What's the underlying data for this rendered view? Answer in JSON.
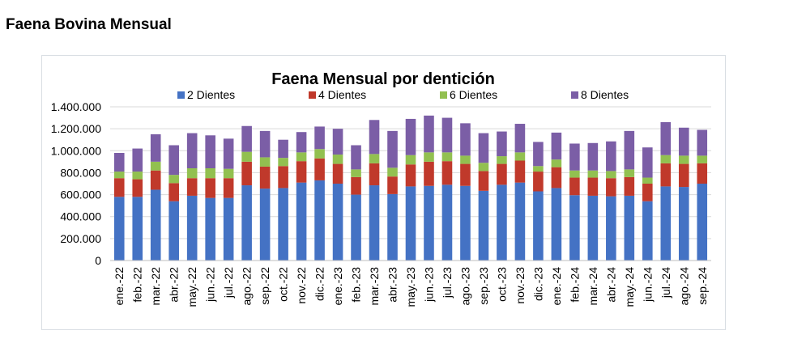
{
  "page": {
    "heading": "Faena Bovina Mensual"
  },
  "colors": {
    "2 Dientes": "#4472c4",
    "4 Dientes": "#c0392b",
    "6 Dientes": "#92c050",
    "8 Dientes": "#7b5ea6",
    "gridline": "#d9d9d9"
  },
  "chart_data": {
    "type": "bar",
    "stacked": true,
    "title": "Faena Mensual por dentición",
    "xlabel": "",
    "ylabel": "",
    "ylim": [
      0,
      1400000
    ],
    "y_ticks": [
      "0",
      "200.000",
      "400.000",
      "600.000",
      "800.000",
      "1.000.000",
      "1.200.000",
      "1.400.000"
    ],
    "grid": true,
    "legend_position": "top",
    "categories": [
      "ene.-22",
      "feb.-22",
      "mar.-22",
      "abr.-22",
      "may.-22",
      "jun.-22",
      "jul.-22",
      "ago.-22",
      "sep.-22",
      "oct.-22",
      "nov.-22",
      "dic.-22",
      "ene.-23",
      "feb.-23",
      "mar.-23",
      "abr.-23",
      "may.-23",
      "jun.-23",
      "jul.-23",
      "ago.-23",
      "sep.-23",
      "oct.-23",
      "nov.-23",
      "dic.-23",
      "ene.-24",
      "feb.-24",
      "mar.-24",
      "abr.-24",
      "may.-24",
      "jun.-24",
      "jul.-24",
      "ago.-24",
      "sep.-24"
    ],
    "series": [
      {
        "name": "2 Dientes",
        "values": [
          580000,
          580000,
          645000,
          540000,
          590000,
          570000,
          570000,
          685000,
          655000,
          660000,
          710000,
          730000,
          700000,
          600000,
          685000,
          605000,
          675000,
          680000,
          690000,
          680000,
          635000,
          690000,
          710000,
          630000,
          660000,
          595000,
          590000,
          585000,
          590000,
          540000,
          675000,
          670000,
          700000
        ]
      },
      {
        "name": "4 Dientes",
        "values": [
          170000,
          160000,
          175000,
          165000,
          160000,
          180000,
          180000,
          215000,
          200000,
          200000,
          195000,
          200000,
          180000,
          160000,
          200000,
          160000,
          200000,
          220000,
          215000,
          200000,
          180000,
          190000,
          200000,
          180000,
          190000,
          160000,
          165000,
          165000,
          170000,
          160000,
          210000,
          210000,
          185000
        ]
      },
      {
        "name": "6 Dientes",
        "values": [
          60000,
          70000,
          80000,
          75000,
          90000,
          90000,
          85000,
          90000,
          85000,
          75000,
          80000,
          85000,
          85000,
          70000,
          85000,
          80000,
          85000,
          85000,
          80000,
          75000,
          75000,
          70000,
          75000,
          50000,
          70000,
          65000,
          65000,
          65000,
          70000,
          55000,
          75000,
          75000,
          70000
        ]
      },
      {
        "name": "8 Dientes",
        "values": [
          170000,
          210000,
          250000,
          270000,
          320000,
          300000,
          275000,
          235000,
          240000,
          165000,
          185000,
          205000,
          235000,
          220000,
          310000,
          335000,
          330000,
          335000,
          315000,
          295000,
          270000,
          225000,
          260000,
          220000,
          245000,
          245000,
          250000,
          270000,
          350000,
          275000,
          300000,
          255000,
          235000
        ]
      }
    ]
  }
}
